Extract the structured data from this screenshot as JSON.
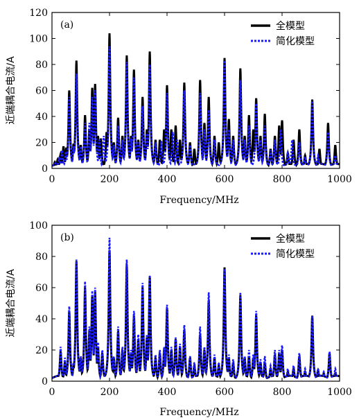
{
  "chart_data": [
    {
      "type": "line",
      "panel_label": "(a)",
      "xlabel": "Frequency/MHz",
      "ylabel": "近端耦合电流/A",
      "xlim": [
        0,
        1000
      ],
      "ylim": [
        0,
        120
      ],
      "xticks": [
        0,
        200,
        400,
        600,
        800,
        1000
      ],
      "yticks": [
        0,
        20,
        40,
        60,
        80,
        100,
        120
      ],
      "legend_position": "top-right",
      "series": [
        {
          "name": "全模型",
          "color": "#000000",
          "style": "solid",
          "peaks": [
            [
              10,
              5
            ],
            [
              20,
              7
            ],
            [
              30,
              11
            ],
            [
              40,
              17
            ],
            [
              50,
              16
            ],
            [
              60,
              60
            ],
            [
              75,
              19
            ],
            [
              85,
              83
            ],
            [
              100,
              18
            ],
            [
              115,
              41
            ],
            [
              130,
              30
            ],
            [
              140,
              62
            ],
            [
              150,
              65
            ],
            [
              160,
              25
            ],
            [
              170,
              23
            ],
            [
              190,
              28
            ],
            [
              200,
              104
            ],
            [
              215,
              20
            ],
            [
              230,
              39
            ],
            [
              245,
              25
            ],
            [
              260,
              87
            ],
            [
              275,
              25
            ],
            [
              285,
              76
            ],
            [
              300,
              22
            ],
            [
              315,
              55
            ],
            [
              330,
              30
            ],
            [
              340,
              90
            ],
            [
              360,
              22
            ],
            [
              375,
              22
            ],
            [
              390,
              30
            ],
            [
              400,
              64
            ],
            [
              415,
              30
            ],
            [
              430,
              33
            ],
            [
              445,
              22
            ],
            [
              460,
              66
            ],
            [
              480,
              20
            ],
            [
              495,
              15
            ],
            [
              515,
              68
            ],
            [
              530,
              35
            ],
            [
              545,
              55
            ],
            [
              565,
              25
            ],
            [
              580,
              20
            ],
            [
              600,
              85
            ],
            [
              615,
              38
            ],
            [
              630,
              25
            ],
            [
              655,
              77
            ],
            [
              670,
              25
            ],
            [
              685,
              41
            ],
            [
              700,
              30
            ],
            [
              710,
              54
            ],
            [
              725,
              25
            ],
            [
              740,
              42
            ],
            [
              760,
              15
            ],
            [
              775,
              25
            ],
            [
              790,
              33
            ],
            [
              800,
              37
            ],
            [
              820,
              12
            ],
            [
              840,
              22
            ],
            [
              860,
              30
            ],
            [
              880,
              10
            ],
            [
              905,
              53
            ],
            [
              930,
              15
            ],
            [
              960,
              35
            ],
            [
              985,
              18
            ]
          ]
        },
        {
          "name": "简化模型",
          "color": "#1a1aff",
          "style": "dotted",
          "peaks": [
            [
              12,
              4
            ],
            [
              25,
              8
            ],
            [
              35,
              14
            ],
            [
              48,
              13
            ],
            [
              60,
              55
            ],
            [
              75,
              17
            ],
            [
              85,
              73
            ],
            [
              100,
              17
            ],
            [
              115,
              35
            ],
            [
              130,
              35
            ],
            [
              140,
              55
            ],
            [
              150,
              60
            ],
            [
              165,
              22
            ],
            [
              180,
              25
            ],
            [
              200,
              94
            ],
            [
              215,
              18
            ],
            [
              230,
              33
            ],
            [
              245,
              22
            ],
            [
              260,
              82
            ],
            [
              275,
              23
            ],
            [
              285,
              70
            ],
            [
              300,
              20
            ],
            [
              315,
              48
            ],
            [
              330,
              27
            ],
            [
              340,
              80
            ],
            [
              360,
              20
            ],
            [
              380,
              21
            ],
            [
              400,
              58
            ],
            [
              420,
              28
            ],
            [
              435,
              22
            ],
            [
              460,
              60
            ],
            [
              480,
              18
            ],
            [
              515,
              58
            ],
            [
              530,
              30
            ],
            [
              545,
              45
            ],
            [
              565,
              22
            ],
            [
              600,
              83
            ],
            [
              615,
              30
            ],
            [
              630,
              22
            ],
            [
              655,
              68
            ],
            [
              670,
              22
            ],
            [
              685,
              33
            ],
            [
              710,
              50
            ],
            [
              725,
              22
            ],
            [
              740,
              33
            ],
            [
              760,
              14
            ],
            [
              775,
              22
            ],
            [
              795,
              30
            ],
            [
              820,
              12
            ],
            [
              835,
              22
            ],
            [
              860,
              20
            ],
            [
              880,
              9
            ],
            [
              905,
              52
            ],
            [
              925,
              10
            ],
            [
              960,
              28
            ],
            [
              985,
              10
            ]
          ]
        }
      ]
    },
    {
      "type": "line",
      "panel_label": "(b)",
      "xlabel": "Frequency/MHz",
      "ylabel": "近端耦合电流/A",
      "xlim": [
        0,
        1000
      ],
      "ylim": [
        0,
        100
      ],
      "xticks": [
        0,
        200,
        400,
        600,
        800,
        1000
      ],
      "yticks": [
        0,
        20,
        40,
        60,
        80,
        100
      ],
      "legend_position": "top-right",
      "series": [
        {
          "name": "全模型",
          "color": "#000000",
          "style": "solid",
          "peaks": [
            [
              15,
              2
            ],
            [
              30,
              19
            ],
            [
              45,
              12
            ],
            [
              60,
              45
            ],
            [
              75,
              10
            ],
            [
              85,
              77
            ],
            [
              100,
              15
            ],
            [
              115,
              60
            ],
            [
              130,
              32
            ],
            [
              140,
              55
            ],
            [
              150,
              57
            ],
            [
              160,
              22
            ],
            [
              175,
              18
            ],
            [
              200,
              84
            ],
            [
              215,
              15
            ],
            [
              230,
              32
            ],
            [
              245,
              20
            ],
            [
              260,
              75
            ],
            [
              275,
              18
            ],
            [
              285,
              42
            ],
            [
              300,
              27
            ],
            [
              315,
              60
            ],
            [
              330,
              28
            ],
            [
              340,
              67
            ],
            [
              360,
              15
            ],
            [
              375,
              18
            ],
            [
              390,
              20
            ],
            [
              400,
              47
            ],
            [
              415,
              20
            ],
            [
              430,
              27
            ],
            [
              445,
              22
            ],
            [
              460,
              33
            ],
            [
              480,
              15
            ],
            [
              495,
              10
            ],
            [
              515,
              30
            ],
            [
              530,
              20
            ],
            [
              545,
              52
            ],
            [
              565,
              15
            ],
            [
              580,
              10
            ],
            [
              600,
              73
            ],
            [
              615,
              15
            ],
            [
              630,
              12
            ],
            [
              655,
              55
            ],
            [
              670,
              15
            ],
            [
              685,
              16
            ],
            [
              700,
              15
            ],
            [
              710,
              42
            ],
            [
              725,
              12
            ],
            [
              740,
              12
            ],
            [
              760,
              8
            ],
            [
              775,
              17
            ],
            [
              790,
              18
            ],
            [
              800,
              20
            ],
            [
              820,
              6
            ],
            [
              840,
              8
            ],
            [
              860,
              16
            ],
            [
              880,
              6
            ],
            [
              905,
              42
            ],
            [
              925,
              7
            ],
            [
              945,
              5
            ],
            [
              965,
              18
            ],
            [
              985,
              5
            ]
          ]
        },
        {
          "name": "简化模型",
          "color": "#1a1aff",
          "style": "dotted",
          "peaks": [
            [
              15,
              3
            ],
            [
              30,
              22
            ],
            [
              45,
              15
            ],
            [
              60,
              48
            ],
            [
              75,
              12
            ],
            [
              85,
              78
            ],
            [
              100,
              16
            ],
            [
              115,
              64
            ],
            [
              130,
              35
            ],
            [
              140,
              58
            ],
            [
              150,
              60
            ],
            [
              160,
              25
            ],
            [
              175,
              20
            ],
            [
              200,
              92
            ],
            [
              215,
              16
            ],
            [
              230,
              35
            ],
            [
              245,
              22
            ],
            [
              260,
              78
            ],
            [
              275,
              20
            ],
            [
              285,
              45
            ],
            [
              300,
              30
            ],
            [
              315,
              63
            ],
            [
              330,
              30
            ],
            [
              340,
              68
            ],
            [
              360,
              17
            ],
            [
              375,
              20
            ],
            [
              390,
              22
            ],
            [
              400,
              49
            ],
            [
              415,
              22
            ],
            [
              430,
              28
            ],
            [
              445,
              24
            ],
            [
              460,
              36
            ],
            [
              480,
              16
            ],
            [
              495,
              12
            ],
            [
              515,
              35
            ],
            [
              530,
              22
            ],
            [
              545,
              57
            ],
            [
              565,
              17
            ],
            [
              580,
              12
            ],
            [
              600,
              72
            ],
            [
              615,
              17
            ],
            [
              630,
              14
            ],
            [
              655,
              57
            ],
            [
              670,
              16
            ],
            [
              685,
              20
            ],
            [
              700,
              17
            ],
            [
              710,
              45
            ],
            [
              725,
              14
            ],
            [
              740,
              16
            ],
            [
              760,
              10
            ],
            [
              775,
              20
            ],
            [
              790,
              20
            ],
            [
              800,
              23
            ],
            [
              820,
              8
            ],
            [
              840,
              10
            ],
            [
              860,
              18
            ],
            [
              880,
              8
            ],
            [
              905,
              42
            ],
            [
              925,
              8
            ],
            [
              945,
              6
            ],
            [
              965,
              19
            ],
            [
              985,
              8
            ]
          ]
        }
      ]
    }
  ]
}
